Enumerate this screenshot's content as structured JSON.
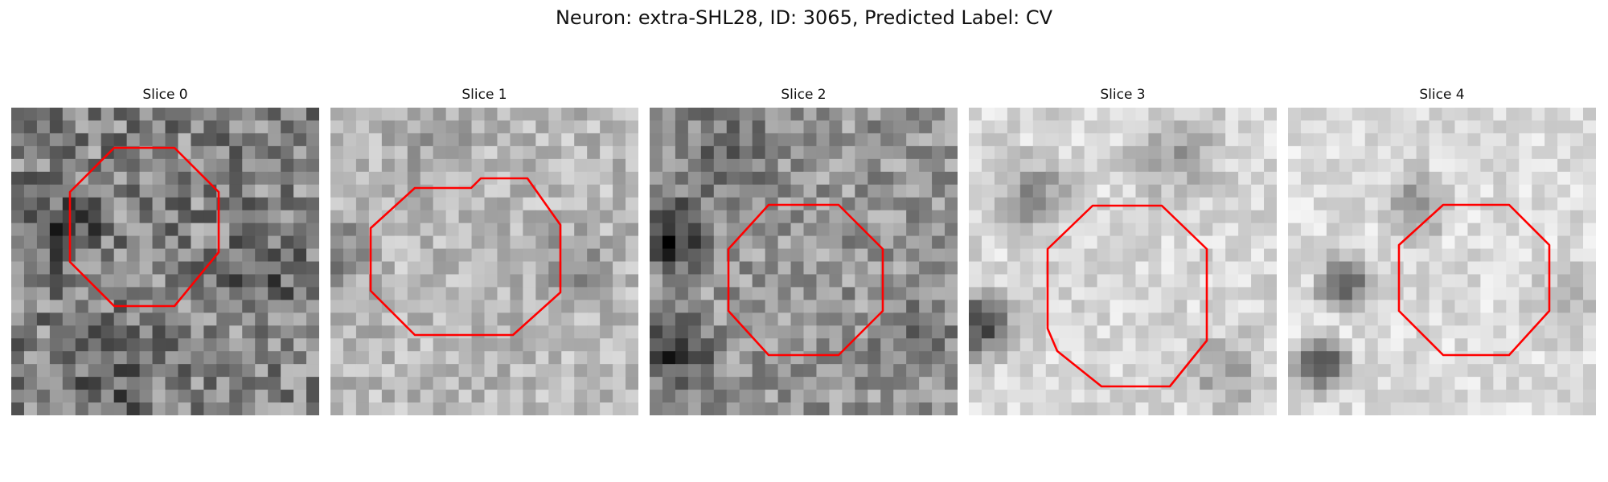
{
  "figure": {
    "title": "Neuron: extra-SHL28, ID: 3065, Predicted Label: CV",
    "outline_color": "#ff0000"
  },
  "panels": [
    {
      "title": "Slice 0",
      "seed": 11,
      "base": 130,
      "noise": 120
    },
    {
      "title": "Slice 1",
      "seed": 23,
      "base": 185,
      "noise": 70
    },
    {
      "title": "Slice 2",
      "seed": 37,
      "base": 150,
      "noise": 90
    },
    {
      "title": "Slice 3",
      "seed": 41,
      "base": 215,
      "noise": 55
    },
    {
      "title": "Slice 4",
      "seed": 53,
      "base": 220,
      "noise": 50
    }
  ]
}
